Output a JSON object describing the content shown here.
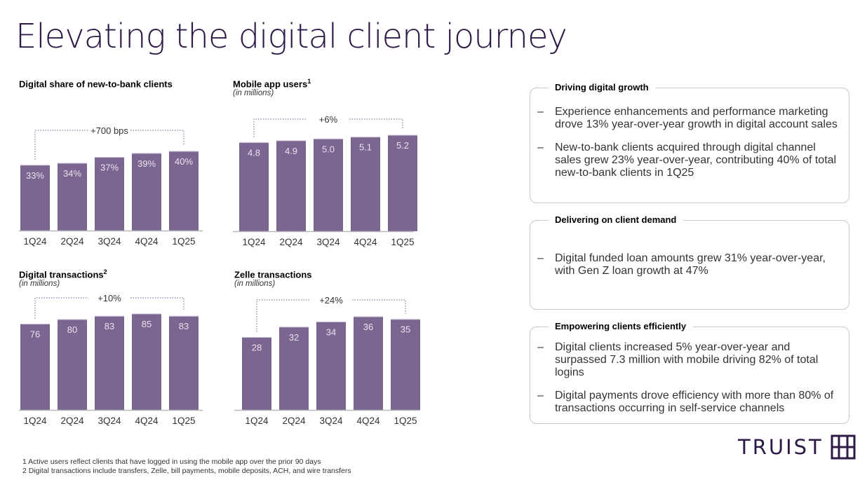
{
  "page": {
    "title": "Elevating the digital client journey"
  },
  "colors": {
    "bar": "#7a6690",
    "brand": "#2e1a47",
    "axis": "#b8b8b8",
    "bracket": "#8c7fa3"
  },
  "chart_data": [
    {
      "type": "bar",
      "title": "Digital share of new-to-bank clients",
      "superscript": "",
      "subtitle": "",
      "categories": [
        "1Q24",
        "2Q24",
        "3Q24",
        "4Q24",
        "1Q25"
      ],
      "values": [
        33,
        34,
        37,
        39,
        40
      ],
      "value_labels": [
        "33%",
        "34%",
        "37%",
        "39%",
        "40%"
      ],
      "unit": "%",
      "annotation": "+700 bps",
      "xlabel": "",
      "ylabel": "",
      "ylim": [
        0,
        40
      ],
      "grid": false
    },
    {
      "type": "bar",
      "title": "Mobile app users",
      "superscript": "1",
      "subtitle": "(in millions)",
      "categories": [
        "1Q24",
        "2Q24",
        "3Q24",
        "4Q24",
        "1Q25"
      ],
      "values": [
        4.8,
        4.9,
        5.0,
        5.1,
        5.2
      ],
      "value_labels": [
        "4.8",
        "4.9",
        "5.0",
        "5.1",
        "5.2"
      ],
      "unit": "millions",
      "annotation": "+6%",
      "xlabel": "",
      "ylabel": "",
      "ylim": [
        0,
        5.2
      ],
      "grid": false
    },
    {
      "type": "bar",
      "title": "Digital transactions",
      "superscript": "2",
      "subtitle": "(in millions)",
      "categories": [
        "1Q24",
        "2Q24",
        "3Q24",
        "4Q24",
        "1Q25"
      ],
      "values": [
        76,
        80,
        83,
        85,
        83
      ],
      "value_labels": [
        "76",
        "80",
        "83",
        "85",
        "83"
      ],
      "unit": "millions",
      "annotation": "+10%",
      "xlabel": "",
      "ylabel": "",
      "ylim": [
        0,
        85
      ],
      "grid": false
    },
    {
      "type": "bar",
      "title": "Zelle transactions",
      "superscript": "",
      "subtitle": "(in millions)",
      "categories": [
        "1Q24",
        "2Q24",
        "3Q24",
        "4Q24",
        "1Q25"
      ],
      "values": [
        28,
        32,
        34,
        36,
        35
      ],
      "value_labels": [
        "28",
        "32",
        "34",
        "36",
        "35"
      ],
      "unit": "millions",
      "annotation": "+24%",
      "xlabel": "",
      "ylabel": "",
      "ylim": [
        0,
        36
      ],
      "grid": false
    }
  ],
  "panels": [
    {
      "heading": "Driving digital growth",
      "bullets": [
        "Experience enhancements and performance marketing drove 13% year-over-year growth in digital account sales",
        "New-to-bank clients acquired through digital channel sales grew 23% year-over-year, contributing 40% of total new-to-bank clients in 1Q25"
      ]
    },
    {
      "heading": "Delivering on client demand",
      "bullets": [
        "Digital funded loan amounts grew 31% year-over-year, with Gen Z loan growth at 47%"
      ]
    },
    {
      "heading": "Empowering clients efficiently",
      "bullets": [
        "Digital clients increased 5% year-over-year and surpassed 7.3 million with mobile driving 82% of total logins",
        "Digital payments drove efficiency with more than 80% of transactions occurring in self-service channels"
      ]
    }
  ],
  "bullet_marker": "–",
  "footnotes": [
    "1 Active users reflect clients that have logged in using the mobile app over the prior 90 days",
    "2 Digital transactions include transfers, Zelle, bill payments, mobile deposits, ACH, and wire transfers"
  ],
  "logo": {
    "text": "TRUIST",
    "icon": "truist-mark-icon"
  }
}
